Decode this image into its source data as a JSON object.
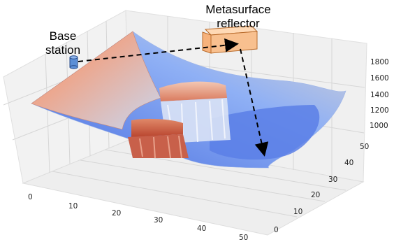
{
  "labels": {
    "base_station": [
      "Base",
      "station"
    ],
    "metasurface_reflector": [
      "Metasurface",
      "reflector"
    ]
  },
  "axes": {
    "x_ticks": [
      "0",
      "10",
      "20",
      "30",
      "40",
      "50"
    ],
    "y_ticks": [
      "0",
      "10",
      "20",
      "30",
      "40",
      "50"
    ],
    "z_ticks": [
      "1000",
      "1200",
      "1400",
      "1600",
      "1800"
    ]
  },
  "colors": {
    "surface_low": "#3b4cc0",
    "surface_mid": "#dddddd",
    "surface_high": "#b40426",
    "reflector_fill": "#f8c08f",
    "base_station_fill": "#5b8fd6",
    "path_line": "#000000"
  }
}
